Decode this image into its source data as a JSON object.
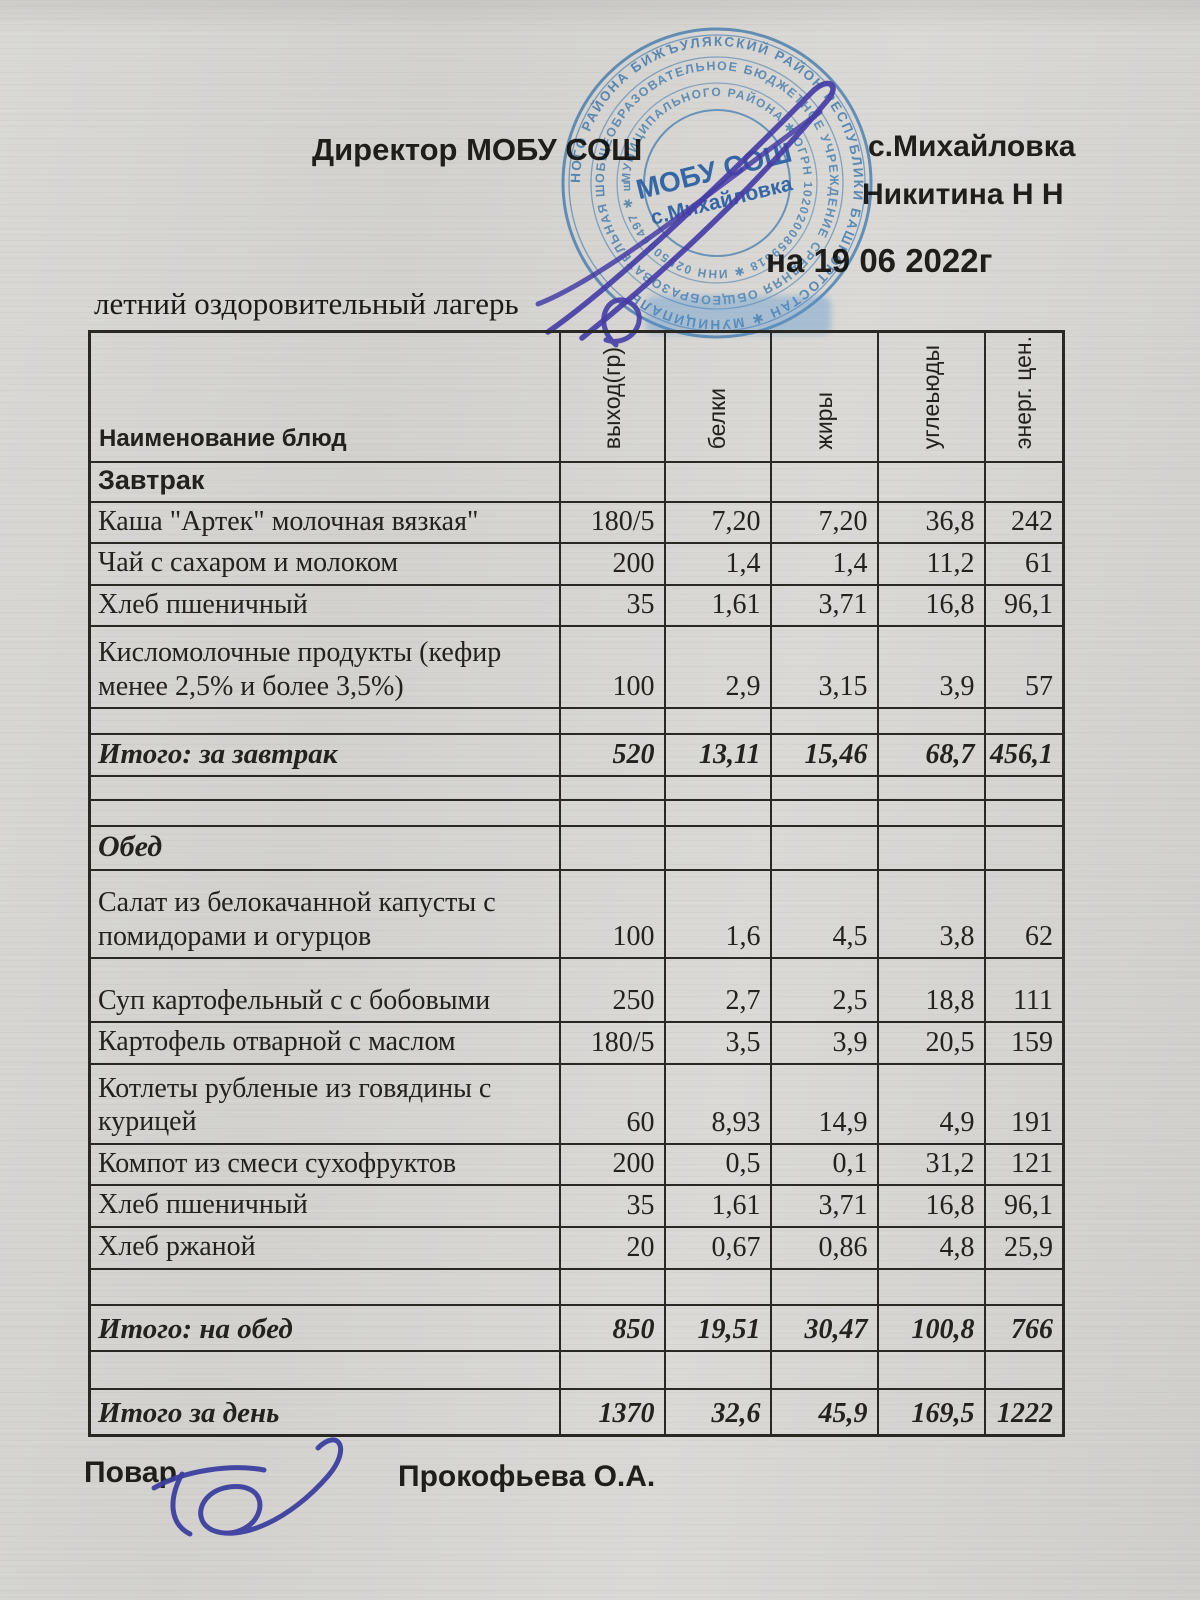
{
  "header": {
    "director_label": "Директор МОБУ СОШ",
    "village": "с.Михайловка",
    "director_name": "Никитина  Н Н",
    "date_line": "на 19 06 2022г",
    "subtitle": "летний оздоровительный лагерь"
  },
  "stamp": {
    "ring_outer": "НОГО РАЙОНА БИЖЪУЛЯКСКИЙ РАЙОН РЕСПУБЛИКИ БАШКОРТОСТАН ✱ МУНИЦИПАЛЬ",
    "ring_middle": "ОБЩЕОБРАЗОВАТЕЛЬНОЕ БЮДЖЕТНОЕ УЧРЕЖДЕНИЕ СРЕДНЯЯ ОБЩЕОБРАЗОВАТЕЛЬНАЯ ШКОЛА",
    "ring_inner": "МУНИЦИПАЛЬНОГО РАЙОНА ✱ ОГРН 1020200859618 ✱ ИНН 0255006497 ✱ школа села",
    "center_line1": "МОБУ СОШ",
    "center_line2": "с.Михайловка"
  },
  "table": {
    "columns": [
      "Наименование блюд",
      "выход(гр)",
      "белки",
      "жиры",
      "углеьюды",
      "энерг. цен."
    ],
    "rows": [
      {
        "type": "section",
        "variant": "sans",
        "label": "Завтрак"
      },
      {
        "type": "item",
        "label": "Каша \"Артек\" молочная вязкая\"",
        "values": [
          "180/5",
          "7,20",
          "7,20",
          "36,8",
          "242"
        ]
      },
      {
        "type": "item",
        "label": "Чай с сахаром и молоком",
        "values": [
          "200",
          "1,4",
          "1,4",
          "11,2",
          "61"
        ]
      },
      {
        "type": "item",
        "label": "Хлеб пшеничный",
        "values": [
          "35",
          "1,61",
          "3,71",
          "16,8",
          "96,1"
        ]
      },
      {
        "type": "item",
        "label": "Кисломолочные продукты (кефир менее 2,5% и более 3,5%)",
        "values": [
          "100",
          "2,9",
          "3,15",
          "3,9",
          "57"
        ]
      },
      {
        "type": "empty"
      },
      {
        "type": "total",
        "label": "Итого: за завтрак",
        "values": [
          "520",
          "13,11",
          "15,46",
          "68,7",
          "456,1"
        ]
      },
      {
        "type": "empty"
      },
      {
        "type": "empty"
      },
      {
        "type": "section",
        "variant": "serif-italic",
        "label": "Обед"
      },
      {
        "type": "item",
        "label": "Салат из белокачанной капусты  с помидорами и огурцов",
        "values": [
          "100",
          "1,6",
          "4,5",
          "3,8",
          "62"
        ]
      },
      {
        "type": "item",
        "label": "Суп картофельный с  с бобовыми",
        "values": [
          "250",
          "2,7",
          "2,5",
          "18,8",
          "111"
        ]
      },
      {
        "type": "item",
        "label": "Картофель отварной с маслом",
        "values": [
          "180/5",
          "3,5",
          "3,9",
          "20,5",
          "159"
        ]
      },
      {
        "type": "item",
        "label": "Котлеты рубленые из говядины с курицей",
        "values": [
          "60",
          "8,93",
          "14,9",
          "4,9",
          "191"
        ]
      },
      {
        "type": "item",
        "label": "Компот из смеси сухофруктов",
        "values": [
          "200",
          "0,5",
          "0,1",
          "31,2",
          "121"
        ]
      },
      {
        "type": "item",
        "label": "Хлеб пшеничный",
        "values": [
          "35",
          "1,61",
          "3,71",
          "16,8",
          "96,1"
        ]
      },
      {
        "type": "item",
        "label": "Хлеб ржаной",
        "values": [
          "20",
          "0,67",
          "0,86",
          "4,8",
          "25,9"
        ]
      },
      {
        "type": "empty"
      },
      {
        "type": "total",
        "label": "Итого: на обед",
        "values": [
          "850",
          "19,51",
          "30,47",
          "100,8",
          "766"
        ]
      },
      {
        "type": "empty"
      },
      {
        "type": "total",
        "label": "Итого за день",
        "values": [
          "1370",
          "32,6",
          "45,9",
          "169,5",
          "1222"
        ]
      }
    ]
  },
  "footer": {
    "role_label": "Повар",
    "cook_name": "Прокофьева О.А."
  }
}
